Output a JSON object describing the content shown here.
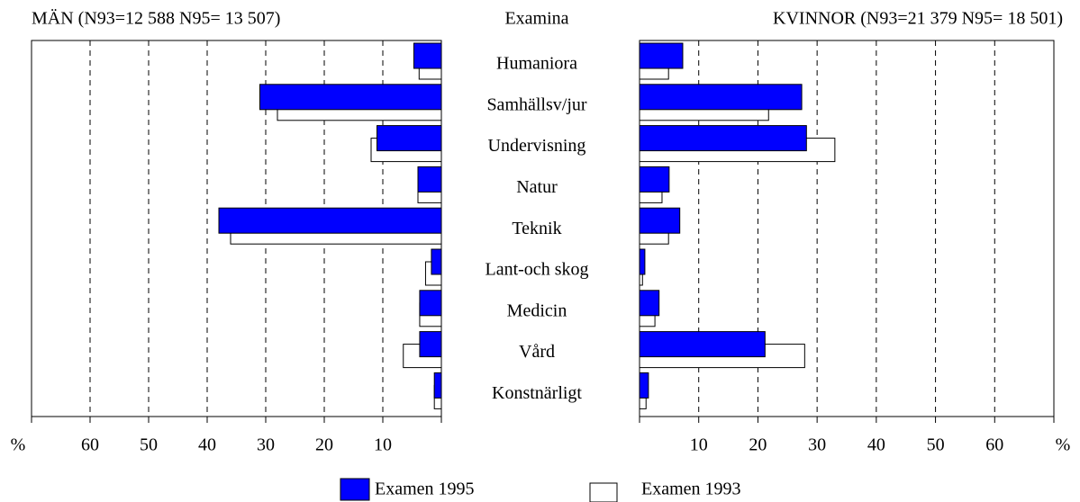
{
  "chart_data": {
    "type": "butterfly-bar",
    "header": "Examina",
    "categories": [
      "Humaniora",
      "Samhällsv/jur",
      "Undervisning",
      "Natur",
      "Teknik",
      "Lant-och skog",
      "Medicin",
      "Vård",
      "Konstnärligt"
    ],
    "series": [
      {
        "name": "Examen 1995",
        "color": "#0000ff",
        "men": [
          4.7,
          31,
          11,
          4,
          38,
          1.7,
          3.7,
          3.7,
          1.2
        ],
        "women": [
          7.3,
          27.4,
          28.2,
          5,
          6.8,
          0.9,
          3.3,
          21.2,
          1.5
        ]
      },
      {
        "name": "Examen 1993",
        "color": "#ffffff",
        "men": [
          3.8,
          28,
          12,
          4,
          36,
          2.7,
          3.7,
          6.5,
          1.2
        ],
        "women": [
          4.9,
          21.8,
          33,
          3.8,
          4.9,
          0.5,
          2.6,
          27.9,
          1.1
        ]
      }
    ],
    "panels": {
      "men": {
        "title": "MÄN (N93=12 588 N95= 13 507)",
        "xlim": [
          0,
          70
        ],
        "xticks": [
          60,
          50,
          40,
          30,
          20,
          10
        ],
        "unit": "%",
        "reversed": true
      },
      "women": {
        "title": "KVINNOR (N93=21 379 N95= 18 501)",
        "xlim": [
          0,
          70
        ],
        "xticks": [
          10,
          20,
          30,
          40,
          50,
          60
        ],
        "unit": "%",
        "reversed": false
      }
    },
    "grid": true
  }
}
